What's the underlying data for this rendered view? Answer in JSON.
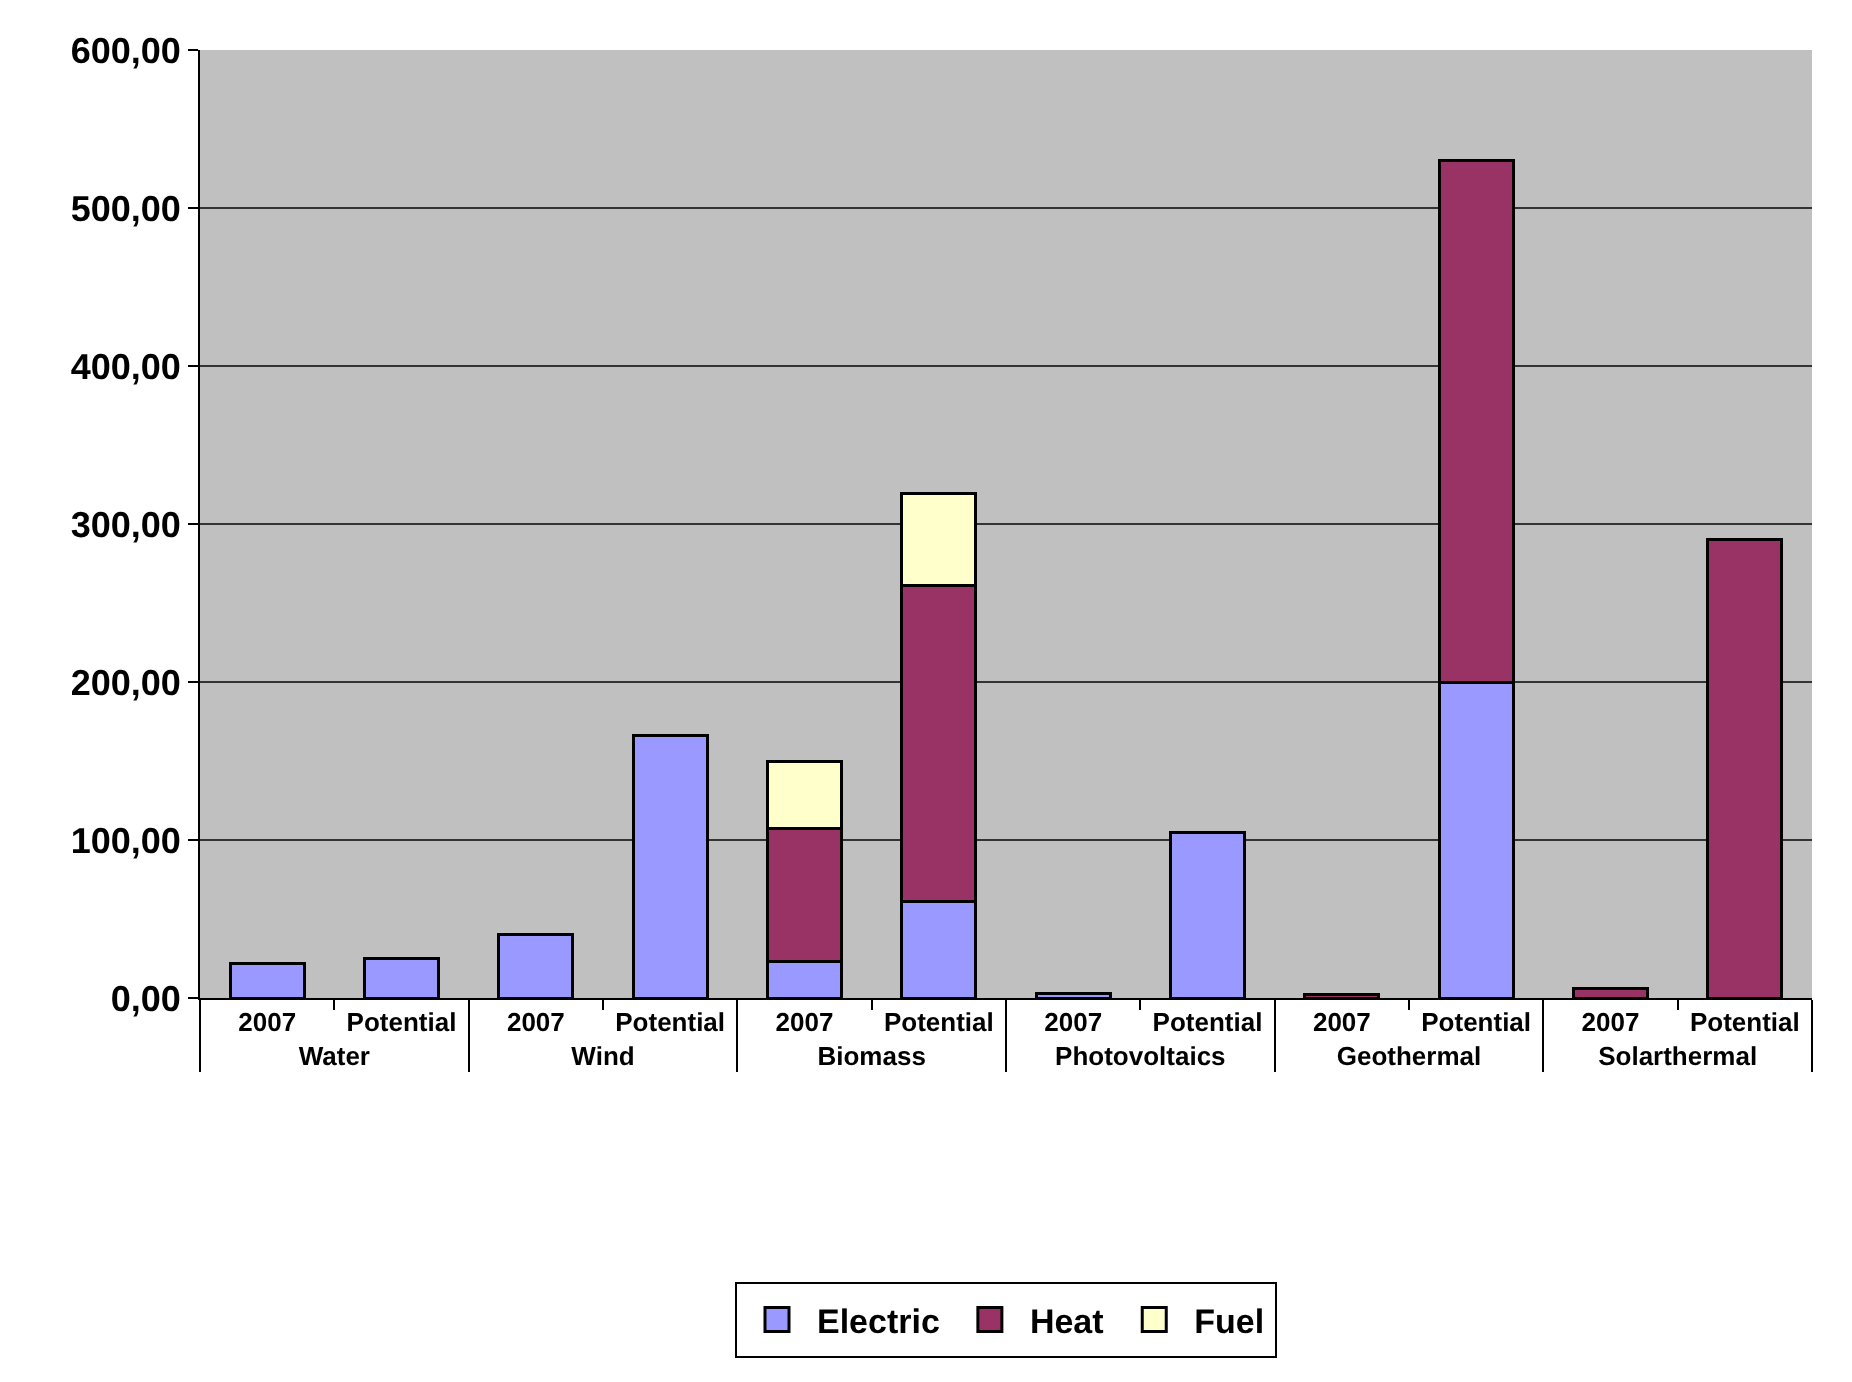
{
  "chart_data": {
    "type": "bar",
    "stacked": true,
    "categories": [
      "2007",
      "Potential",
      "2007",
      "Potential",
      "2007",
      "Potential",
      "2007",
      "Potential",
      "2007",
      "Potential",
      "2007",
      "Potential"
    ],
    "annotations": [
      "Water",
      "Wind",
      "Biomass",
      "Photovoltaics",
      "Geothermal",
      "Solarthermal"
    ],
    "series": [
      {
        "name": "Electric",
        "color": "#9999ff",
        "values": [
          22,
          25,
          40,
          166,
          23,
          61,
          3,
          105,
          null,
          200,
          null,
          null
        ]
      },
      {
        "name": "Heat",
        "color": "#993366",
        "values": [
          null,
          null,
          null,
          null,
          84,
          200,
          null,
          null,
          2,
          330,
          6,
          290
        ]
      },
      {
        "name": "Fuel",
        "color": "#ffffcc",
        "values": [
          null,
          null,
          null,
          null,
          43,
          58,
          null,
          null,
          null,
          null,
          null,
          null
        ]
      }
    ],
    "ylim": [
      0,
      600
    ],
    "yticks": [
      {
        "value": 0,
        "label": "0,00"
      },
      {
        "value": 100,
        "label": "100,00"
      },
      {
        "value": 200,
        "label": "200,00"
      },
      {
        "value": 300,
        "label": "300,00"
      },
      {
        "value": 400,
        "label": "400,00"
      },
      {
        "value": 500,
        "label": "500,00"
      },
      {
        "value": 600,
        "label": "600,00"
      }
    ],
    "grid": true,
    "legend": "bottom"
  }
}
